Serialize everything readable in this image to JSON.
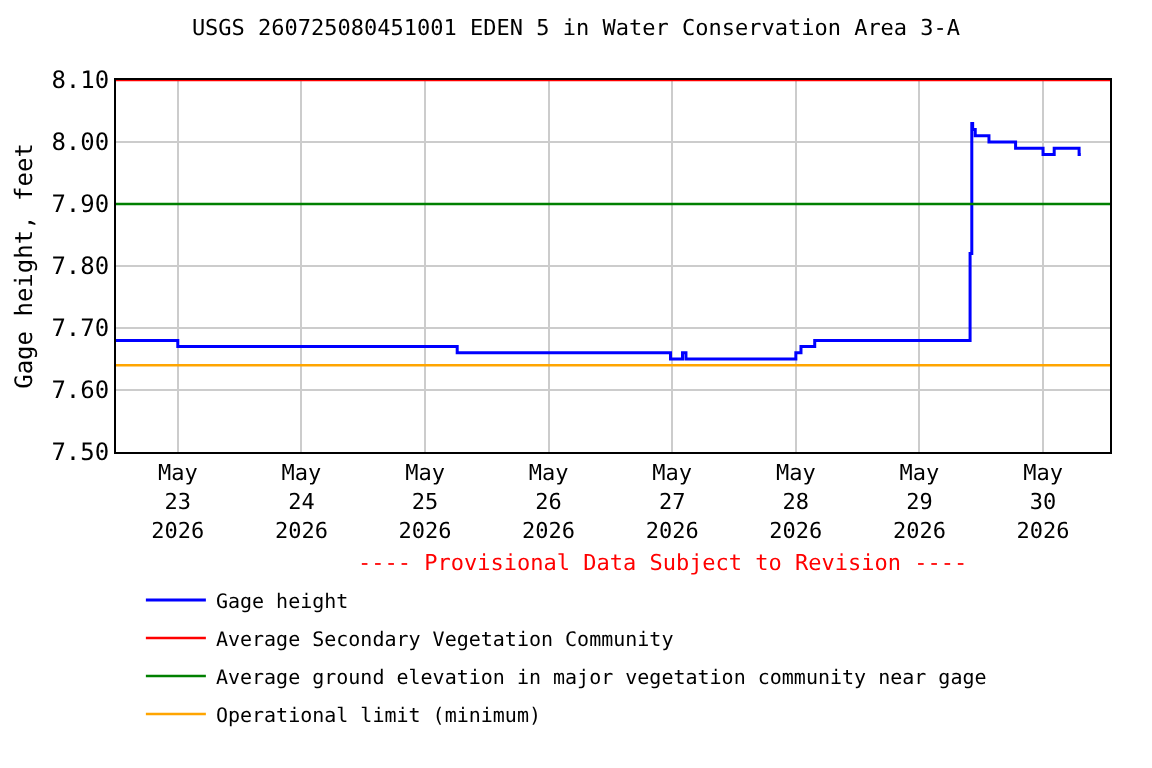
{
  "chart_data": {
    "type": "step",
    "title": "USGS 260725080451001 EDEN 5 in Water Conservation Area 3-A",
    "ylabel": "Gage height, feet",
    "x": [
      "2026-05-22T12:00",
      "2026-05-23T00:00",
      "2026-05-25T06:15",
      "2026-05-26T23:40",
      "2026-05-27T00:00",
      "2026-05-27T02:00",
      "2026-05-27T02:40",
      "2026-05-28T00:00",
      "2026-05-28T01:00",
      "2026-05-28T03:40",
      "2026-05-29T09:50",
      "2026-05-29T10:10",
      "2026-05-29T10:20",
      "2026-05-29T10:50",
      "2026-05-29T11:10",
      "2026-05-29T13:30",
      "2026-05-29T18:40",
      "2026-05-30T00:00",
      "2026-05-30T02:10",
      "2026-05-30T07:00",
      "2026-05-30T07:20"
    ],
    "series": [
      {
        "name": "Gage height",
        "color": "#0000ff",
        "values": [
          7.68,
          7.67,
          7.66,
          7.65,
          7.65,
          7.66,
          7.65,
          7.66,
          7.67,
          7.68,
          7.82,
          8.03,
          8.02,
          8.01,
          8.01,
          8.0,
          7.99,
          7.98,
          7.99,
          7.98,
          7.98
        ]
      }
    ],
    "ref_lines": [
      {
        "axis": "y",
        "value": 8.1,
        "label": "Average Secondary Vegetation Community",
        "color": "#ff0000"
      },
      {
        "axis": "y",
        "value": 7.9,
        "label": "Average ground elevation in major vegetation community near gage",
        "color": "#008000"
      },
      {
        "axis": "y",
        "value": 7.64,
        "label": "Operational limit (minimum)",
        "color": "#ffa500"
      }
    ],
    "annotations": [
      "---- Provisional Data Subject to Revision ----"
    ],
    "xlim": [
      "2026-05-22T12:00",
      "2026-05-30T13:00"
    ],
    "xticks": [
      {
        "value": "2026-05-23",
        "label": "May\n23\n2026"
      },
      {
        "value": "2026-05-24",
        "label": "May\n24\n2026"
      },
      {
        "value": "2026-05-25",
        "label": "May\n25\n2026"
      },
      {
        "value": "2026-05-26",
        "label": "May\n26\n2026"
      },
      {
        "value": "2026-05-27",
        "label": "May\n27\n2026"
      },
      {
        "value": "2026-05-28",
        "label": "May\n28\n2026"
      },
      {
        "value": "2026-05-29",
        "label": "May\n29\n2026"
      },
      {
        "value": "2026-05-30",
        "label": "May\n30\n2026"
      }
    ],
    "ylim": [
      7.5,
      8.1
    ],
    "yticks": [
      {
        "value": 7.5,
        "label": "7.50"
      },
      {
        "value": 7.6,
        "label": "7.60"
      },
      {
        "value": 7.7,
        "label": "7.70"
      },
      {
        "value": 7.8,
        "label": "7.80"
      },
      {
        "value": 7.9,
        "label": "7.90"
      },
      {
        "value": 8.0,
        "label": "8.00"
      },
      {
        "value": 8.1,
        "label": "8.10"
      }
    ],
    "grid": true,
    "legend": "bottom"
  }
}
